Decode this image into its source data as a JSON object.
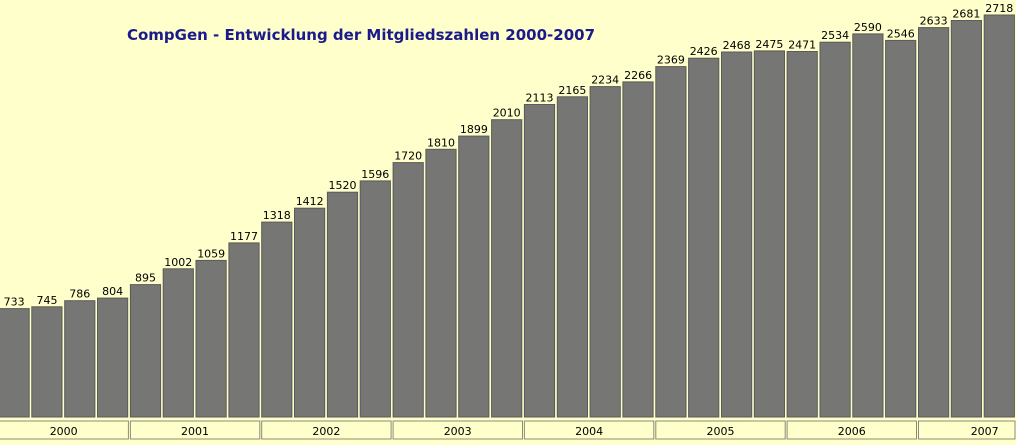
{
  "chart_data": {
    "type": "bar",
    "title": "CompGen - Entwicklung der Mitgliedszahlen 2000-2007",
    "xlabel": "",
    "ylabel": "",
    "ylim": [
      0,
      2750
    ],
    "grid": false,
    "legend": "none",
    "colors": {
      "background": "#ffffcc",
      "bar": "#767674",
      "bar_border": "#5a5a58",
      "title": "#1a1a8c",
      "year_box_border": "#8c8c78"
    },
    "values": [
      733,
      745,
      786,
      804,
      895,
      1002,
      1059,
      1177,
      1318,
      1412,
      1520,
      1596,
      1720,
      1810,
      1899,
      2010,
      2113,
      2165,
      2234,
      2266,
      2369,
      2426,
      2468,
      2475,
      2471,
      2534,
      2590,
      2546,
      2633,
      2681,
      2718
    ],
    "value_labels": [
      "733",
      "745",
      "786",
      "804",
      "895",
      "1002",
      "1059",
      "1177",
      "1318",
      "1412",
      "1520",
      "1596",
      "1720",
      "1810",
      "1899",
      "2010",
      "2113",
      "2165",
      "2234",
      "2266",
      "2369",
      "2426",
      "2468",
      "2475",
      "2471",
      "2534",
      "2590",
      "2546",
      "2633",
      "2681",
      "2718"
    ],
    "year_groups": [
      {
        "label": "2000",
        "count": 4
      },
      {
        "label": "2001",
        "count": 4
      },
      {
        "label": "2002",
        "count": 4
      },
      {
        "label": "2003",
        "count": 4
      },
      {
        "label": "2004",
        "count": 4
      },
      {
        "label": "2005",
        "count": 4
      },
      {
        "label": "2006",
        "count": 4
      },
      {
        "label": "2007",
        "count": 3
      }
    ]
  }
}
